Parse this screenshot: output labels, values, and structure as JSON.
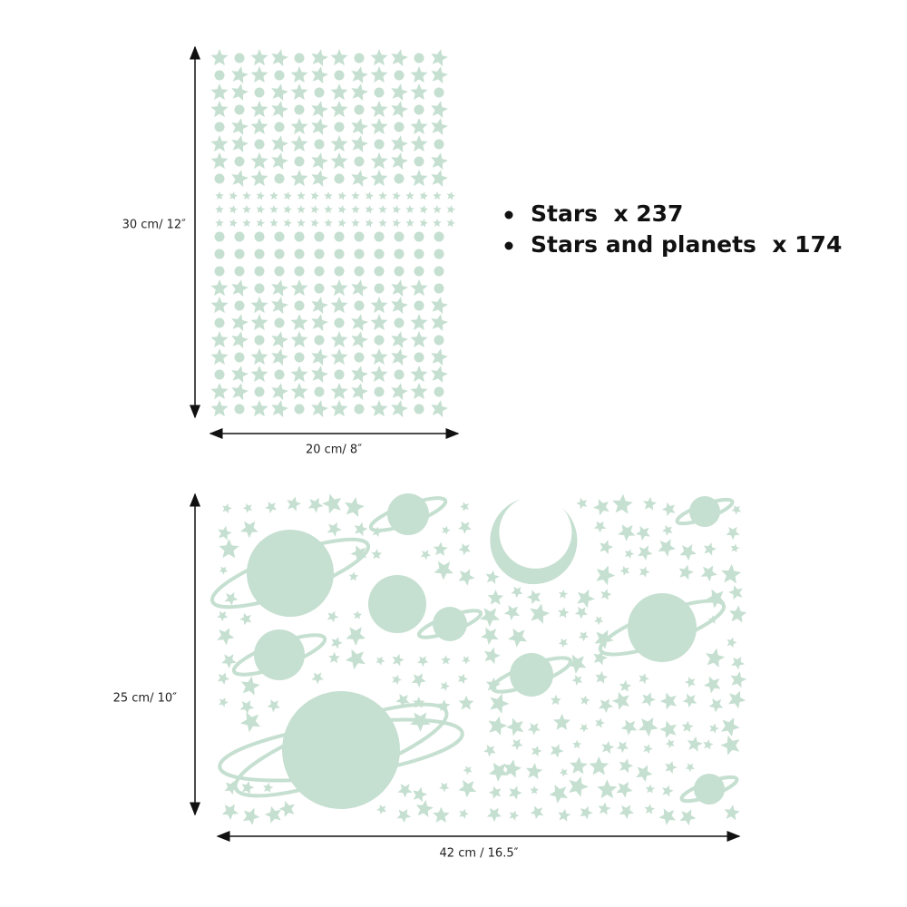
{
  "sheet_1": {
    "height_label": "30 cm/ 12″",
    "width_label": "20 cm/ 8″"
  },
  "contents": [
    "Stars  x 237",
    "Stars and planets  x 174"
  ],
  "sheet_2": {
    "height_label": "25 cm/ 10″",
    "width_label": "42 cm / 16.5″"
  }
}
